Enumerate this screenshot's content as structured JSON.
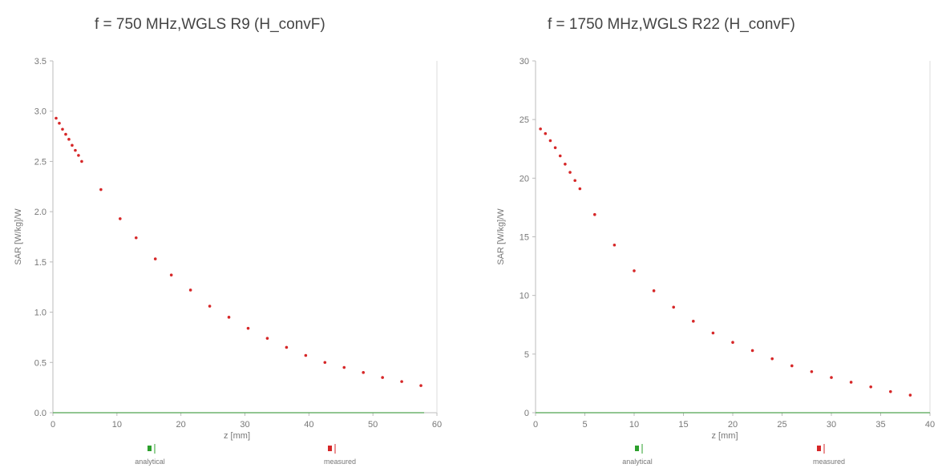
{
  "chart_data": [
    {
      "type": "scatter",
      "title": "f = 750 MHz,WGLS R9 (H_convF)",
      "xlabel": "z [mm]",
      "ylabel": "SAR [W/kg]/W",
      "xlim": [
        0,
        60
      ],
      "ylim": [
        0,
        3.5
      ],
      "xticks": [
        0,
        10,
        20,
        30,
        40,
        50,
        60
      ],
      "yticks": [
        0.0,
        0.5,
        1.0,
        1.5,
        2.0,
        2.5,
        3.0,
        3.5
      ],
      "ytick_labels": [
        "0.0",
        "0.5",
        "1.0",
        "1.5",
        "2.0",
        "2.5",
        "3.0",
        "3.5"
      ],
      "grid": false,
      "legend_position": "bottom",
      "series": [
        {
          "name": "analytical",
          "color": "#2ca02c",
          "x": [
            0,
            10,
            20,
            30,
            40,
            50,
            58
          ],
          "y": [
            0,
            0,
            0,
            0,
            0,
            0,
            0
          ]
        },
        {
          "name": "measured",
          "color": "#d62728",
          "x": [
            0.5,
            1,
            1.5,
            2,
            2.5,
            3,
            3.5,
            4,
            4.5,
            7.5,
            10.5,
            13,
            16,
            18.5,
            21.5,
            24.5,
            27.5,
            30.5,
            33.5,
            36.5,
            39.5,
            42.5,
            45.5,
            48.5,
            51.5,
            54.5,
            57.5
          ],
          "y": [
            2.93,
            2.88,
            2.82,
            2.77,
            2.72,
            2.66,
            2.61,
            2.56,
            2.5,
            2.22,
            1.93,
            1.74,
            1.53,
            1.37,
            1.22,
            1.06,
            0.95,
            0.84,
            0.74,
            0.65,
            0.57,
            0.5,
            0.45,
            0.4,
            0.35,
            0.31,
            0.27
          ]
        }
      ]
    },
    {
      "type": "scatter",
      "title": "f = 1750 MHz,WGLS R22 (H_convF)",
      "xlabel": "z [mm]",
      "ylabel": "SAR [W/kg]/W",
      "xlim": [
        0,
        40
      ],
      "ylim": [
        0,
        30
      ],
      "xticks": [
        0,
        5,
        10,
        15,
        20,
        25,
        30,
        35,
        40
      ],
      "yticks": [
        0,
        5,
        10,
        15,
        20,
        25,
        30
      ],
      "ytick_labels": [
        "0",
        "5",
        "10",
        "15",
        "20",
        "25",
        "30"
      ],
      "grid": false,
      "legend_position": "bottom",
      "series": [
        {
          "name": "analytical",
          "color": "#2ca02c",
          "x": [
            0,
            10,
            20,
            30,
            40
          ],
          "y": [
            0,
            0,
            0,
            0,
            0
          ]
        },
        {
          "name": "measured",
          "color": "#d62728",
          "x": [
            0.5,
            1,
            1.5,
            2,
            2.5,
            3,
            3.5,
            4,
            4.5,
            6,
            8,
            10,
            12,
            14,
            16,
            18,
            20,
            22,
            24,
            26,
            28,
            30,
            32,
            34,
            36,
            38
          ],
          "y": [
            24.2,
            23.8,
            23.2,
            22.6,
            21.9,
            21.2,
            20.5,
            19.8,
            19.1,
            16.9,
            14.3,
            12.1,
            10.4,
            9.0,
            7.8,
            6.8,
            6.0,
            5.3,
            4.6,
            4.0,
            3.5,
            3.0,
            2.6,
            2.2,
            1.8,
            1.5
          ]
        }
      ]
    }
  ]
}
